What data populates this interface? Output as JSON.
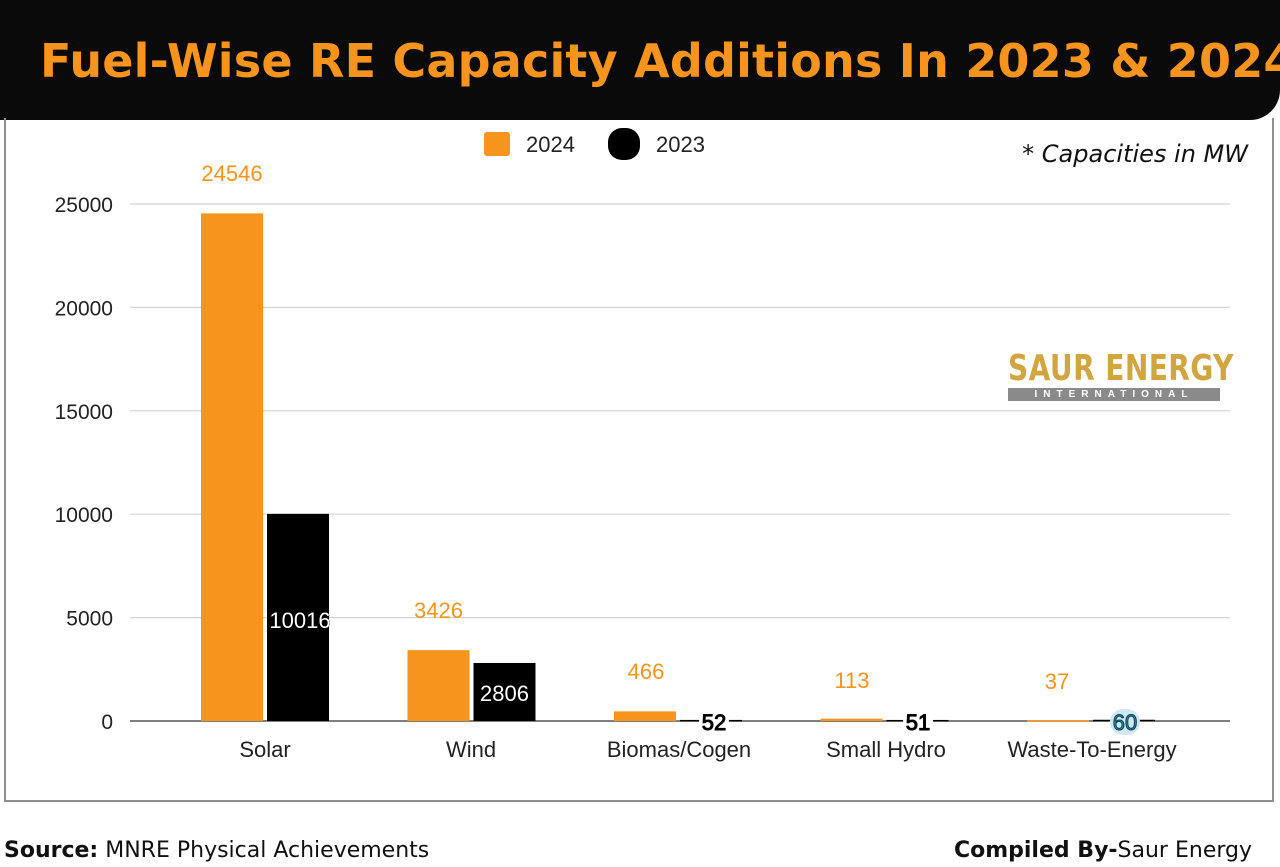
{
  "colors": {
    "orange": "#f7941d",
    "black": "#000000",
    "teal": "#2a8fb3",
    "title_bg": "#0a0a0a",
    "logo_gold": "#d1a640"
  },
  "header": {
    "title": "Fuel-Wise RE Capacity Additions In 2023 & 2024"
  },
  "note": "* Capacities in MW",
  "logo": {
    "main": "SAUR ENERGY",
    "sub": "INTERNATIONAL"
  },
  "footer": {
    "source_label": "Source:",
    "source_text": "MNRE Physical Achievements",
    "compiled_label": "Compiled By-",
    "compiled_text": "Saur Energy"
  },
  "chart_data": {
    "type": "bar",
    "title": "Fuel-Wise RE Capacity Additions In 2023 & 2024",
    "xlabel": "",
    "ylabel": "",
    "categories": [
      "Solar",
      "Wind",
      "Biomas/Cogen",
      "Small Hydro",
      "Waste-To-Energy"
    ],
    "series": [
      {
        "name": "2024",
        "color": "#f7941d",
        "values": [
          24546,
          3426,
          466,
          113,
          37
        ],
        "labels": [
          "24546",
          "3426",
          "466",
          "113",
          "37"
        ]
      },
      {
        "name": "2023",
        "color": "#000000",
        "values": [
          10016,
          2806,
          52,
          51,
          60
        ],
        "labels": [
          "10016",
          "2806",
          "52",
          "51",
          "60"
        ]
      }
    ],
    "ylim": [
      0,
      25000
    ],
    "yticks": [
      0,
      5000,
      10000,
      15000,
      20000,
      25000
    ],
    "ytick_labels": [
      "0",
      "5000",
      "10000",
      "15000",
      "20000",
      "25000"
    ],
    "grid": true,
    "legend": "top-center"
  }
}
